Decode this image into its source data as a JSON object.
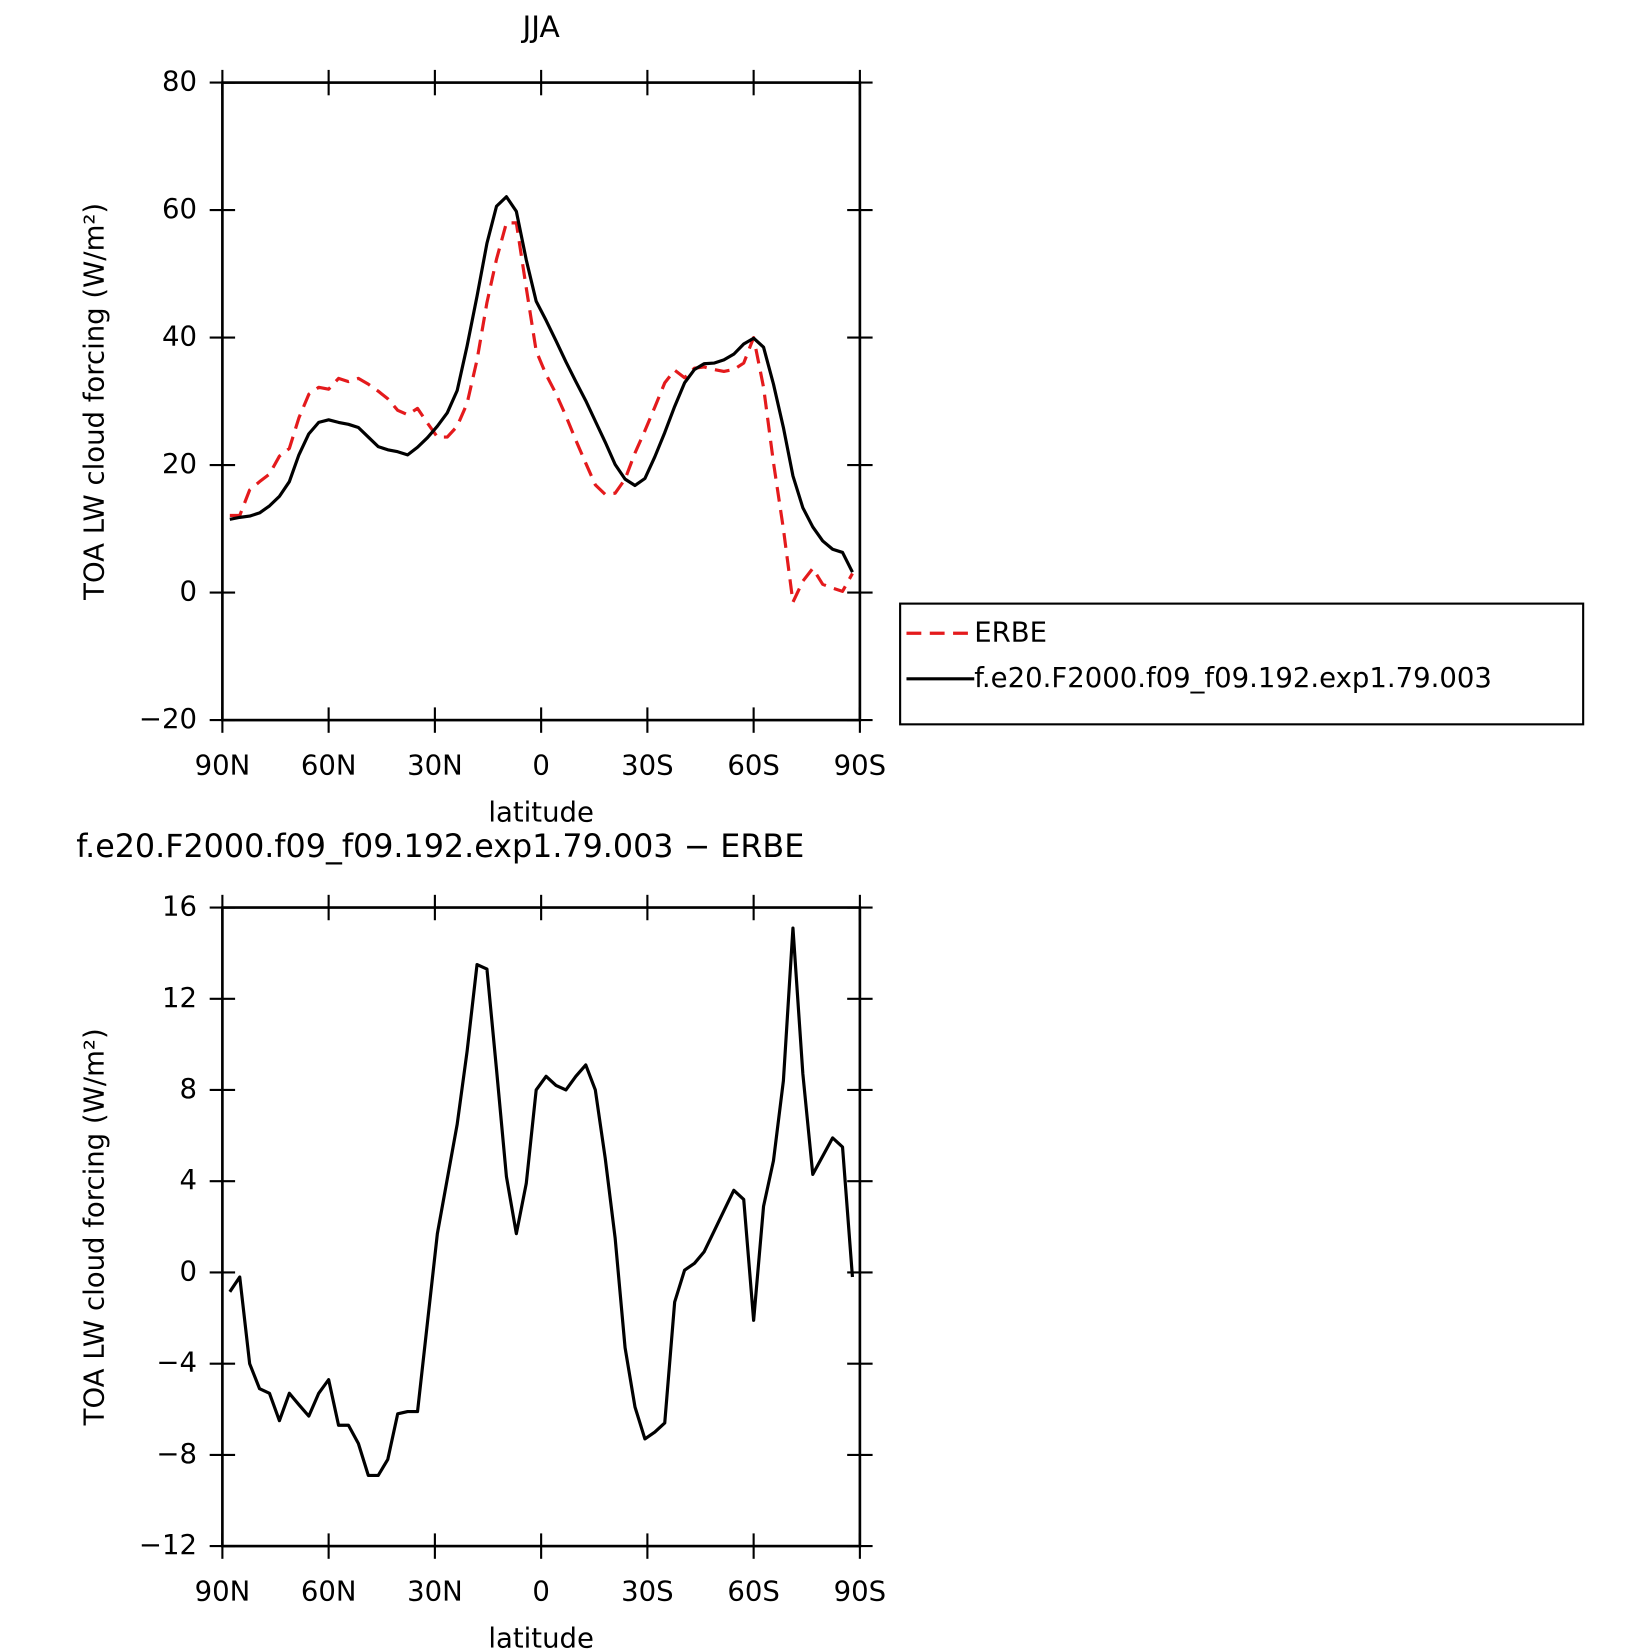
{
  "chart_data": [
    {
      "type": "line",
      "title": "JJA",
      "xlabel": "latitude",
      "ylabel": "TOA LW cloud forcing (W/m²)",
      "x": [
        87.9,
        85.1,
        82.3,
        79.5,
        76.7,
        73.9,
        71.1,
        68.4,
        65.6,
        62.8,
        60.0,
        57.2,
        54.4,
        51.6,
        48.8,
        46.0,
        43.3,
        40.5,
        37.7,
        34.9,
        32.1,
        29.3,
        26.5,
        23.7,
        20.9,
        18.1,
        15.3,
        12.6,
        9.8,
        7.0,
        4.2,
        1.4,
        -1.4,
        -4.2,
        -7.0,
        -9.8,
        -12.6,
        -15.3,
        -18.1,
        -20.9,
        -23.7,
        -26.5,
        -29.3,
        -32.1,
        -34.9,
        -37.7,
        -40.5,
        -43.3,
        -46.0,
        -48.8,
        -51.6,
        -54.4,
        -57.2,
        -60.0,
        -62.8,
        -65.6,
        -68.4,
        -71.1,
        -73.9,
        -76.7,
        -79.5,
        -82.3,
        -85.1,
        -87.9
      ],
      "series": [
        {
          "name": "ERBE",
          "color": "#e41a1c",
          "dashed": true,
          "values": [
            12.1,
            12.1,
            16.1,
            17.4,
            18.6,
            21.4,
            22.6,
            27.4,
            31.1,
            32.2,
            31.9,
            33.6,
            33.1,
            33.6,
            32.7,
            31.6,
            30.4,
            28.6,
            27.9,
            28.9,
            26.6,
            24.4,
            24.4,
            26.1,
            29.7,
            36.5,
            45.5,
            52.3,
            58.0,
            58.0,
            47.8,
            37.9,
            34.2,
            31.2,
            27.7,
            23.9,
            20.3,
            16.9,
            15.4,
            15.6,
            17.8,
            21.9,
            25.4,
            29.1,
            32.9,
            34.9,
            33.7,
            35.2,
            35.4,
            35.0,
            34.7,
            35.0,
            36.0,
            40.0,
            32.2,
            20.4,
            10.0,
            -1.5,
            1.8,
            3.8,
            1.3,
            0.7,
            0.2,
            3.0
          ]
        },
        {
          "name": "f.e20.F2000.f09_f09.192.exp1.79.003",
          "color": "#000000",
          "dashed": false,
          "values": [
            11.5,
            11.8,
            12.0,
            12.5,
            13.6,
            15.1,
            17.4,
            21.6,
            24.9,
            26.7,
            27.1,
            26.7,
            26.4,
            25.9,
            24.4,
            22.9,
            22.4,
            22.1,
            21.6,
            22.8,
            24.3,
            26.1,
            28.2,
            31.7,
            38.7,
            46.5,
            54.8,
            60.6,
            62.1,
            59.8,
            52.2,
            45.7,
            42.7,
            39.5,
            36.2,
            33.1,
            30.1,
            26.9,
            23.6,
            20.1,
            17.8,
            16.8,
            17.9,
            21.3,
            25.1,
            29.2,
            32.9,
            35.0,
            35.9,
            36.0,
            36.5,
            37.4,
            39.0,
            39.9,
            38.5,
            32.7,
            25.9,
            18.3,
            13.3,
            10.3,
            8.1,
            6.8,
            6.3,
            3.2
          ]
        }
      ],
      "xlim": [
        90,
        -90
      ],
      "xticks": [
        {
          "value": 90,
          "label": "90N"
        },
        {
          "value": 60,
          "label": "60N"
        },
        {
          "value": 30,
          "label": "30N"
        },
        0,
        {
          "value": -30,
          "label": "30S"
        },
        {
          "value": -60,
          "label": "60S"
        },
        {
          "value": -90,
          "label": "90S"
        }
      ],
      "ylim": [
        -20,
        80
      ],
      "yticks": [
        {
          "value": -20,
          "label": "−20"
        },
        0,
        20,
        40,
        60,
        80
      ],
      "legend": "outside-right"
    },
    {
      "type": "line",
      "title": "f.e20.F2000.f09_f09.192.exp1.79.003 − ERBE",
      "xlabel": "latitude",
      "ylabel": "TOA LW cloud forcing (W/m²)",
      "x": [
        87.9,
        85.1,
        82.3,
        79.5,
        76.7,
        73.9,
        71.1,
        68.4,
        65.6,
        62.8,
        60.0,
        57.2,
        54.4,
        51.6,
        48.8,
        46.0,
        43.3,
        40.5,
        37.7,
        34.9,
        32.1,
        29.3,
        26.5,
        23.7,
        20.9,
        18.1,
        15.3,
        12.6,
        9.8,
        7.0,
        4.2,
        1.4,
        -1.4,
        -4.2,
        -7.0,
        -9.8,
        -12.6,
        -15.3,
        -18.1,
        -20.9,
        -23.7,
        -26.5,
        -29.3,
        -32.1,
        -34.9,
        -37.7,
        -40.5,
        -43.3,
        -46.0,
        -48.8,
        -51.6,
        -54.4,
        -57.2,
        -60.0,
        -62.8,
        -65.6,
        -68.4,
        -71.1,
        -73.9,
        -76.7,
        -79.5,
        -82.3,
        -85.1,
        -87.9
      ],
      "color": "#000000",
      "values": [
        -0.85,
        -0.2,
        -4.0,
        -5.1,
        -5.3,
        -6.5,
        -5.3,
        -5.8,
        -6.3,
        -5.3,
        -4.7,
        -6.7,
        -6.7,
        -7.5,
        -8.9,
        -8.9,
        -8.2,
        -6.2,
        -6.1,
        -6.1,
        -2.2,
        1.7,
        4.1,
        6.5,
        9.7,
        13.5,
        13.3,
        8.9,
        4.2,
        1.7,
        3.9,
        8.0,
        8.6,
        8.2,
        8.0,
        8.6,
        9.1,
        8.0,
        5.0,
        1.5,
        -3.3,
        -5.9,
        -7.3,
        -7.0,
        -6.6,
        -1.3,
        0.1,
        0.4,
        0.9,
        1.8,
        2.7,
        3.6,
        3.2,
        -2.1,
        2.9,
        4.9,
        8.4,
        15.1,
        8.7,
        4.3,
        5.1,
        5.9,
        5.5,
        -0.2
      ],
      "xlim": [
        90,
        -90
      ],
      "xticks": [
        {
          "value": 90,
          "label": "90N"
        },
        {
          "value": 60,
          "label": "60N"
        },
        {
          "value": 30,
          "label": "30N"
        },
        0,
        {
          "value": -30,
          "label": "30S"
        },
        {
          "value": -60,
          "label": "60S"
        },
        {
          "value": -90,
          "label": "90S"
        }
      ],
      "ylim": [
        -12,
        16
      ],
      "yticks": [
        {
          "value": -12,
          "label": "−12"
        },
        {
          "value": -8,
          "label": "−8"
        },
        {
          "value": -4,
          "label": "−4"
        },
        0,
        4,
        8,
        12,
        16
      ]
    }
  ]
}
